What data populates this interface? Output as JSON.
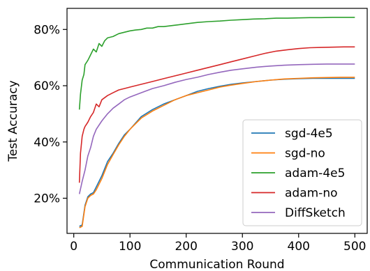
{
  "chart_data": {
    "type": "line",
    "title": "",
    "xlabel": "Communication Round",
    "ylabel": "Test Accuracy",
    "xlim": [
      -12,
      522
    ],
    "ylim": [
      7.5,
      87.5
    ],
    "xticks": [
      0,
      100,
      200,
      300,
      400,
      500
    ],
    "xtick_labels": [
      "0",
      "100",
      "200",
      "300",
      "400",
      "500"
    ],
    "yticks": [
      20,
      40,
      60,
      80
    ],
    "ytick_labels": [
      "20%",
      "40%",
      "60%",
      "80%"
    ],
    "grid": false,
    "legend_position": "lower right",
    "series": [
      {
        "name": "sgd-4e5",
        "color": "#1f77b4",
        "x": [
          10,
          15,
          20,
          25,
          30,
          35,
          40,
          50,
          60,
          70,
          80,
          90,
          100,
          120,
          140,
          160,
          180,
          200,
          220,
          240,
          260,
          280,
          300,
          325,
          350,
          375,
          400,
          425,
          450,
          475,
          500
        ],
        "y": [
          10.0,
          10.5,
          17.5,
          20.5,
          21.5,
          22.0,
          24.0,
          28.0,
          33.0,
          36.0,
          39.5,
          42.5,
          44.5,
          49.0,
          51.5,
          53.5,
          55.0,
          56.5,
          58.0,
          59.0,
          59.8,
          60.5,
          61.0,
          61.5,
          62.0,
          62.3,
          62.5,
          62.6,
          62.6,
          62.6,
          62.6
        ]
      },
      {
        "name": "sgd-no",
        "color": "#ff7f0e",
        "x": [
          10,
          15,
          20,
          25,
          30,
          35,
          40,
          50,
          60,
          70,
          80,
          90,
          100,
          120,
          140,
          160,
          180,
          200,
          220,
          240,
          260,
          280,
          300,
          325,
          350,
          375,
          400,
          425,
          450,
          475,
          500
        ],
        "y": [
          9.5,
          10.0,
          17.0,
          20.0,
          21.0,
          21.5,
          23.0,
          27.0,
          32.0,
          35.5,
          39.0,
          42.0,
          44.5,
          48.5,
          51.0,
          53.0,
          55.0,
          56.5,
          57.5,
          58.5,
          59.5,
          60.2,
          60.8,
          61.5,
          62.0,
          62.4,
          62.6,
          62.8,
          62.9,
          63.0,
          63.0
        ]
      },
      {
        "name": "adam-4e5",
        "color": "#2ca02c",
        "x": [
          10,
          12,
          15,
          18,
          20,
          25,
          30,
          35,
          40,
          45,
          50,
          55,
          60,
          70,
          80,
          90,
          100,
          110,
          120,
          130,
          140,
          150,
          160,
          180,
          200,
          220,
          240,
          260,
          280,
          300,
          320,
          340,
          360,
          380,
          400,
          420,
          440,
          460,
          480,
          500
        ],
        "y": [
          51.5,
          57.0,
          62.0,
          64.0,
          67.5,
          69.0,
          71.0,
          73.0,
          72.0,
          75.0,
          74.0,
          76.0,
          77.0,
          77.5,
          78.5,
          79.0,
          79.5,
          79.8,
          80.0,
          80.5,
          80.5,
          81.0,
          81.0,
          81.5,
          82.0,
          82.5,
          82.8,
          83.0,
          83.3,
          83.5,
          83.7,
          83.8,
          84.0,
          84.0,
          84.1,
          84.2,
          84.2,
          84.3,
          84.3,
          84.3
        ]
      },
      {
        "name": "adam-no",
        "color": "#d62728",
        "x": [
          10,
          12,
          15,
          18,
          20,
          25,
          30,
          35,
          40,
          45,
          50,
          60,
          70,
          80,
          90,
          100,
          110,
          120,
          140,
          160,
          180,
          200,
          220,
          240,
          260,
          280,
          300,
          320,
          340,
          360,
          380,
          400,
          420,
          440,
          460,
          480,
          500
        ],
        "y": [
          25.5,
          36.0,
          42.0,
          44.5,
          45.5,
          47.0,
          49.0,
          50.5,
          53.5,
          52.5,
          55.0,
          56.5,
          57.5,
          58.5,
          59.0,
          59.5,
          60.0,
          60.5,
          61.5,
          62.5,
          63.5,
          64.5,
          65.5,
          66.5,
          67.5,
          68.5,
          69.5,
          70.5,
          71.5,
          72.3,
          72.8,
          73.2,
          73.5,
          73.6,
          73.7,
          73.8,
          73.8
        ]
      },
      {
        "name": "DiffSketch",
        "color": "#9467bd",
        "x": [
          10,
          15,
          20,
          25,
          30,
          35,
          40,
          50,
          60,
          70,
          80,
          90,
          100,
          120,
          140,
          160,
          180,
          200,
          220,
          240,
          260,
          280,
          300,
          325,
          350,
          375,
          400,
          425,
          450,
          475,
          500
        ],
        "y": [
          21.5,
          26.0,
          30.0,
          35.0,
          38.0,
          42.0,
          44.5,
          47.5,
          50.0,
          52.0,
          53.5,
          55.0,
          56.0,
          57.5,
          59.0,
          60.0,
          61.2,
          62.2,
          63.0,
          64.0,
          64.8,
          65.5,
          66.0,
          66.6,
          67.0,
          67.3,
          67.5,
          67.6,
          67.7,
          67.7,
          67.7
        ]
      }
    ]
  }
}
